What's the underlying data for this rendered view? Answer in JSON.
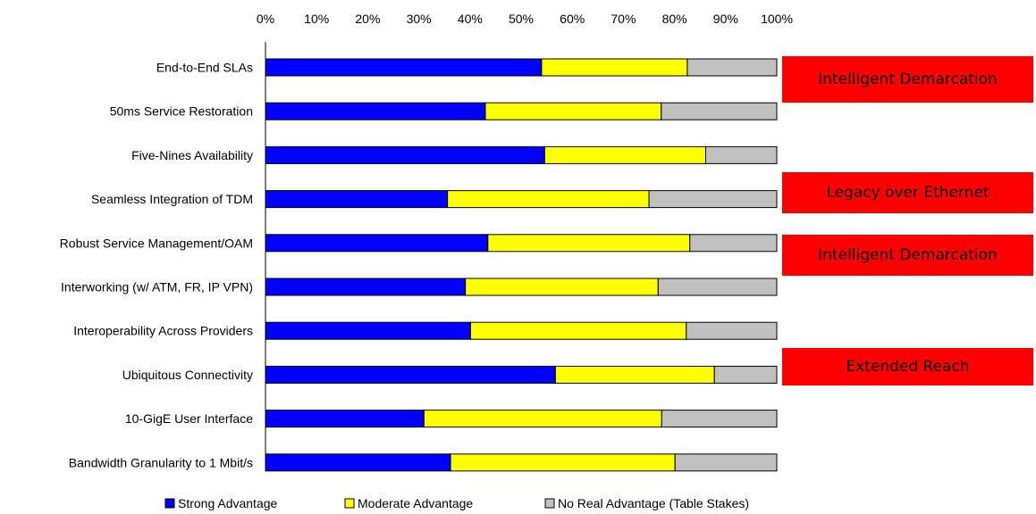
{
  "chart_data": {
    "type": "bar",
    "orientation": "horizontal",
    "stacked": true,
    "percent_stacked": true,
    "title": "",
    "xlabel": "",
    "ylabel": "",
    "xlim": [
      0,
      100
    ],
    "x_ticks": [
      "0%",
      "10%",
      "20%",
      "30%",
      "40%",
      "50%",
      "60%",
      "70%",
      "80%",
      "90%",
      "100%"
    ],
    "x_axis_position": "top",
    "grid": false,
    "legend_position": "bottom",
    "categories": [
      "End-to-End SLAs",
      "50ms Service Restoration",
      "Five-Nines Availability",
      "Seamless Integration of TDM",
      "Robust Service Management/OAM",
      "Interworking (w/ ATM, FR, IP VPN)",
      "Interoperability Across Providers",
      "Ubiquitous Connectivity",
      "10-GigE User Interface",
      "Bandwidth Granularity to 1 Mbit/s"
    ],
    "series": [
      {
        "name": "Strong Advantage",
        "color": "#0000ff",
        "values": [
          54,
          43,
          54.6,
          35.6,
          43.5,
          39.1,
          40.1,
          56.7,
          31,
          36.2
        ]
      },
      {
        "name": "Moderate Advantage",
        "color": "#ffff00",
        "values": [
          28.5,
          34.4,
          31.5,
          39.4,
          39.5,
          37.7,
          42.2,
          31.1,
          46.5,
          43.9
        ]
      },
      {
        "name": "No Real Advantage (Table Stakes)",
        "color": "#c0c0c0",
        "values": [
          17.5,
          22.6,
          13.9,
          25,
          17,
          23.2,
          17.7,
          12.2,
          22.5,
          19.9
        ]
      }
    ],
    "callouts": [
      {
        "text": "Intelligent Demarcation",
        "color": "#ff0000"
      },
      {
        "text": "Legacy over Ethernet",
        "color": "#ff0000"
      },
      {
        "text": "Intelligent Demarcation",
        "color": "#ff0000"
      },
      {
        "text": "Extended Reach",
        "color": "#ff0000"
      }
    ]
  }
}
